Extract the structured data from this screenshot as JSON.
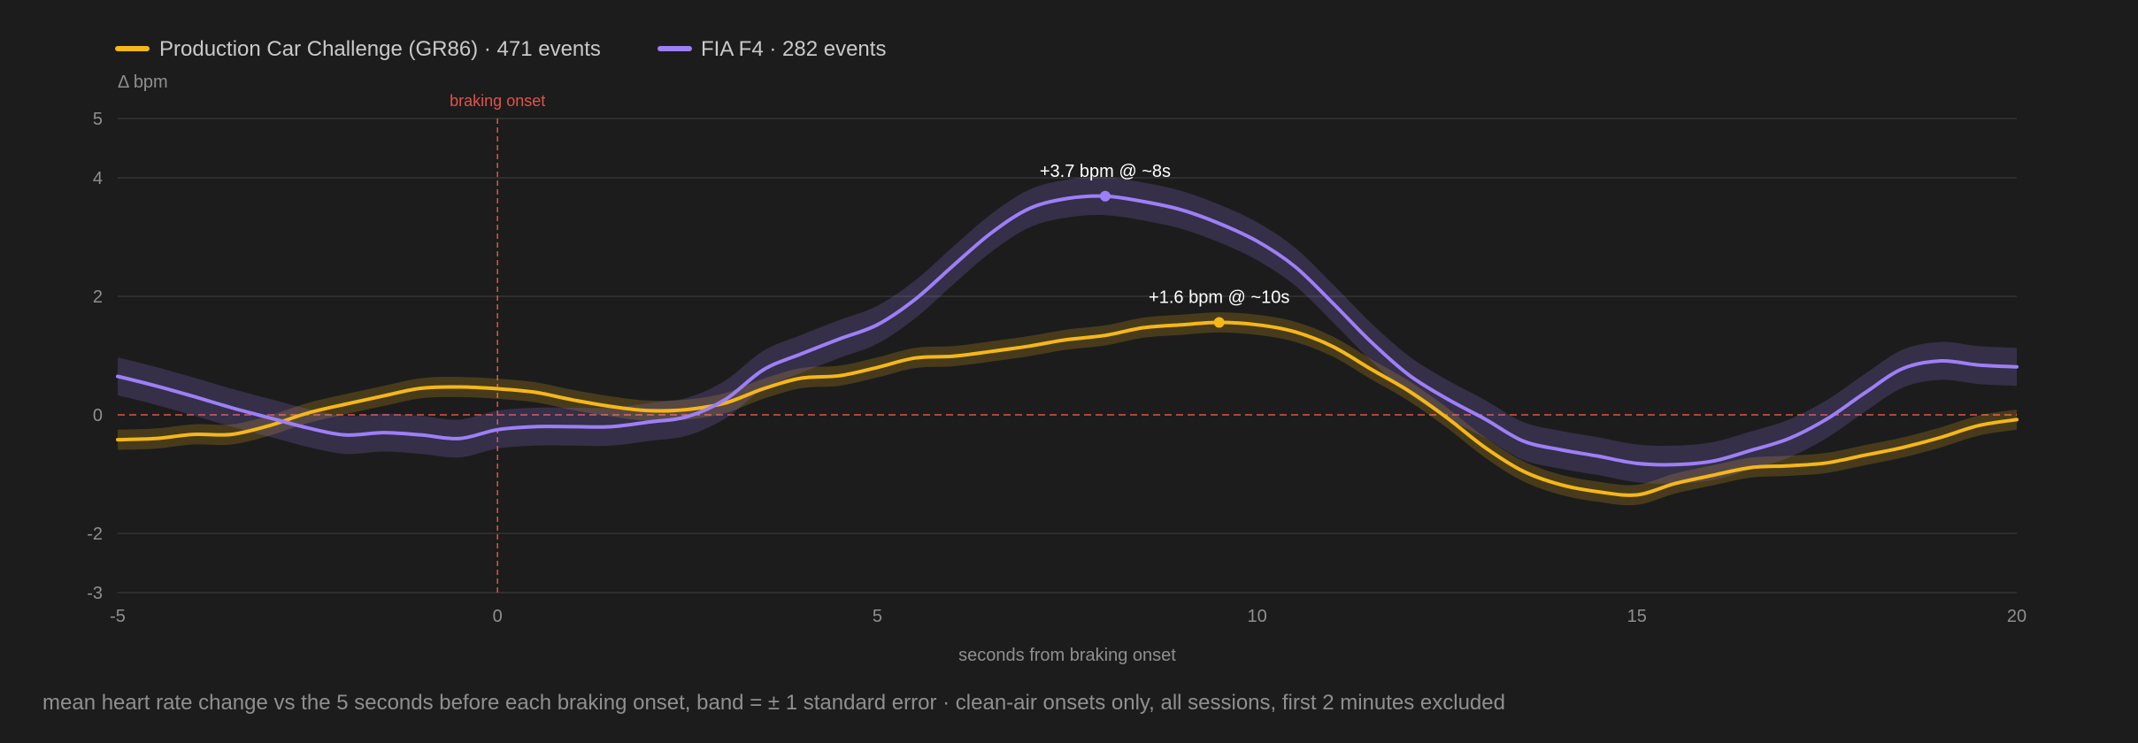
{
  "chart_data": {
    "type": "line",
    "title": "",
    "xlabel": "seconds from braking onset",
    "ylabel": "Δ bpm",
    "xlim": [
      -5,
      20
    ],
    "ylim": [
      -3,
      5
    ],
    "xticks": [
      -5,
      0,
      5,
      10,
      15,
      20
    ],
    "yticks": [
      5,
      4,
      2,
      0,
      -2,
      -3
    ],
    "grid": true,
    "legend_position": "top-left",
    "footnote": "mean heart rate change vs the 5 seconds before each braking onset, band = ± 1 standard error · clean-air onsets only, all sessions, first 2 minutes excluded",
    "reference_lines": [
      {
        "axis": "x",
        "value": 0,
        "label": "braking onset",
        "color": "#e0534b"
      },
      {
        "axis": "y",
        "value": 0,
        "label": "",
        "color": "#e0534b"
      }
    ],
    "x": [
      -5,
      -4.5,
      -4,
      -3.5,
      -3,
      -2.5,
      -2,
      -1.5,
      -1,
      -0.5,
      0,
      0.5,
      1,
      1.5,
      2,
      2.5,
      3,
      3.5,
      4,
      4.5,
      5,
      5.5,
      6,
      6.5,
      7,
      7.5,
      8,
      8.5,
      9,
      9.5,
      10,
      10.5,
      11,
      11.5,
      12,
      12.5,
      13,
      13.5,
      14,
      14.5,
      15,
      15.5,
      16,
      16.5,
      17,
      17.5,
      18,
      18.5,
      19,
      19.5,
      20
    ],
    "series": [
      {
        "name": "Production Car Challenge (GR86) · 471 events",
        "color": "#f5b719",
        "values": [
          -0.42,
          -0.4,
          -0.33,
          -0.33,
          -0.18,
          0.03,
          0.18,
          0.32,
          0.45,
          0.47,
          0.44,
          0.38,
          0.25,
          0.14,
          0.07,
          0.09,
          0.2,
          0.44,
          0.62,
          0.66,
          0.8,
          0.96,
          0.99,
          1.07,
          1.16,
          1.27,
          1.34,
          1.47,
          1.52,
          1.56,
          1.52,
          1.4,
          1.15,
          0.77,
          0.4,
          -0.05,
          -0.55,
          -0.95,
          -1.18,
          -1.3,
          -1.35,
          -1.16,
          -1.02,
          -0.89,
          -0.86,
          -0.81,
          -0.68,
          -0.55,
          -0.38,
          -0.18,
          -0.08
        ],
        "stderr": 0.17,
        "count_label": "471 events"
      },
      {
        "name": "FIA F4 · 282 events",
        "color": "#9d7ff7",
        "values": [
          0.65,
          0.49,
          0.31,
          0.12,
          -0.05,
          -0.22,
          -0.34,
          -0.3,
          -0.34,
          -0.4,
          -0.25,
          -0.2,
          -0.2,
          -0.2,
          -0.12,
          -0.03,
          0.26,
          0.76,
          1.03,
          1.28,
          1.52,
          1.95,
          2.52,
          3.07,
          3.48,
          3.65,
          3.69,
          3.6,
          3.46,
          3.23,
          2.93,
          2.5,
          1.88,
          1.23,
          0.67,
          0.27,
          -0.07,
          -0.44,
          -0.59,
          -0.7,
          -0.82,
          -0.84,
          -0.78,
          -0.6,
          -0.4,
          -0.07,
          0.37,
          0.78,
          0.91,
          0.84,
          0.81
        ],
        "stderr": 0.32,
        "count_label": "282 events"
      }
    ],
    "annotations": [
      {
        "text": "+3.7 bpm @ ~8s",
        "x": 8,
        "y": 3.69,
        "series": 1
      },
      {
        "text": "+1.6 bpm @ ~10s",
        "x": 9.5,
        "y": 1.56,
        "series": 0
      }
    ]
  }
}
